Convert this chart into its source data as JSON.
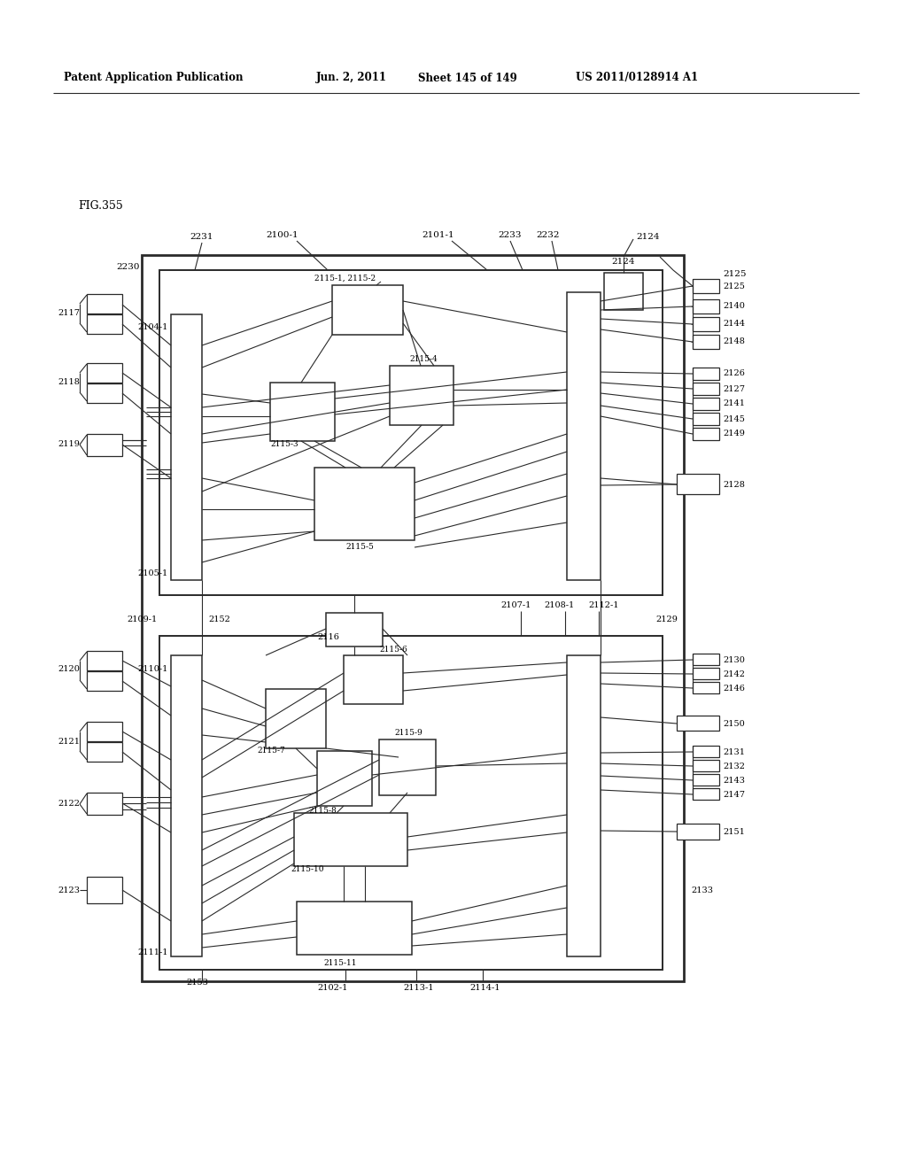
{
  "bg_color": "#ffffff",
  "lc": "#2a2a2a",
  "header1": "Patent Application Publication",
  "header2": "Jun. 2, 2011",
  "header3": "Sheet 145 of 149",
  "header4": "US 2011/0128914 A1",
  "fig_label": "FIG.355"
}
